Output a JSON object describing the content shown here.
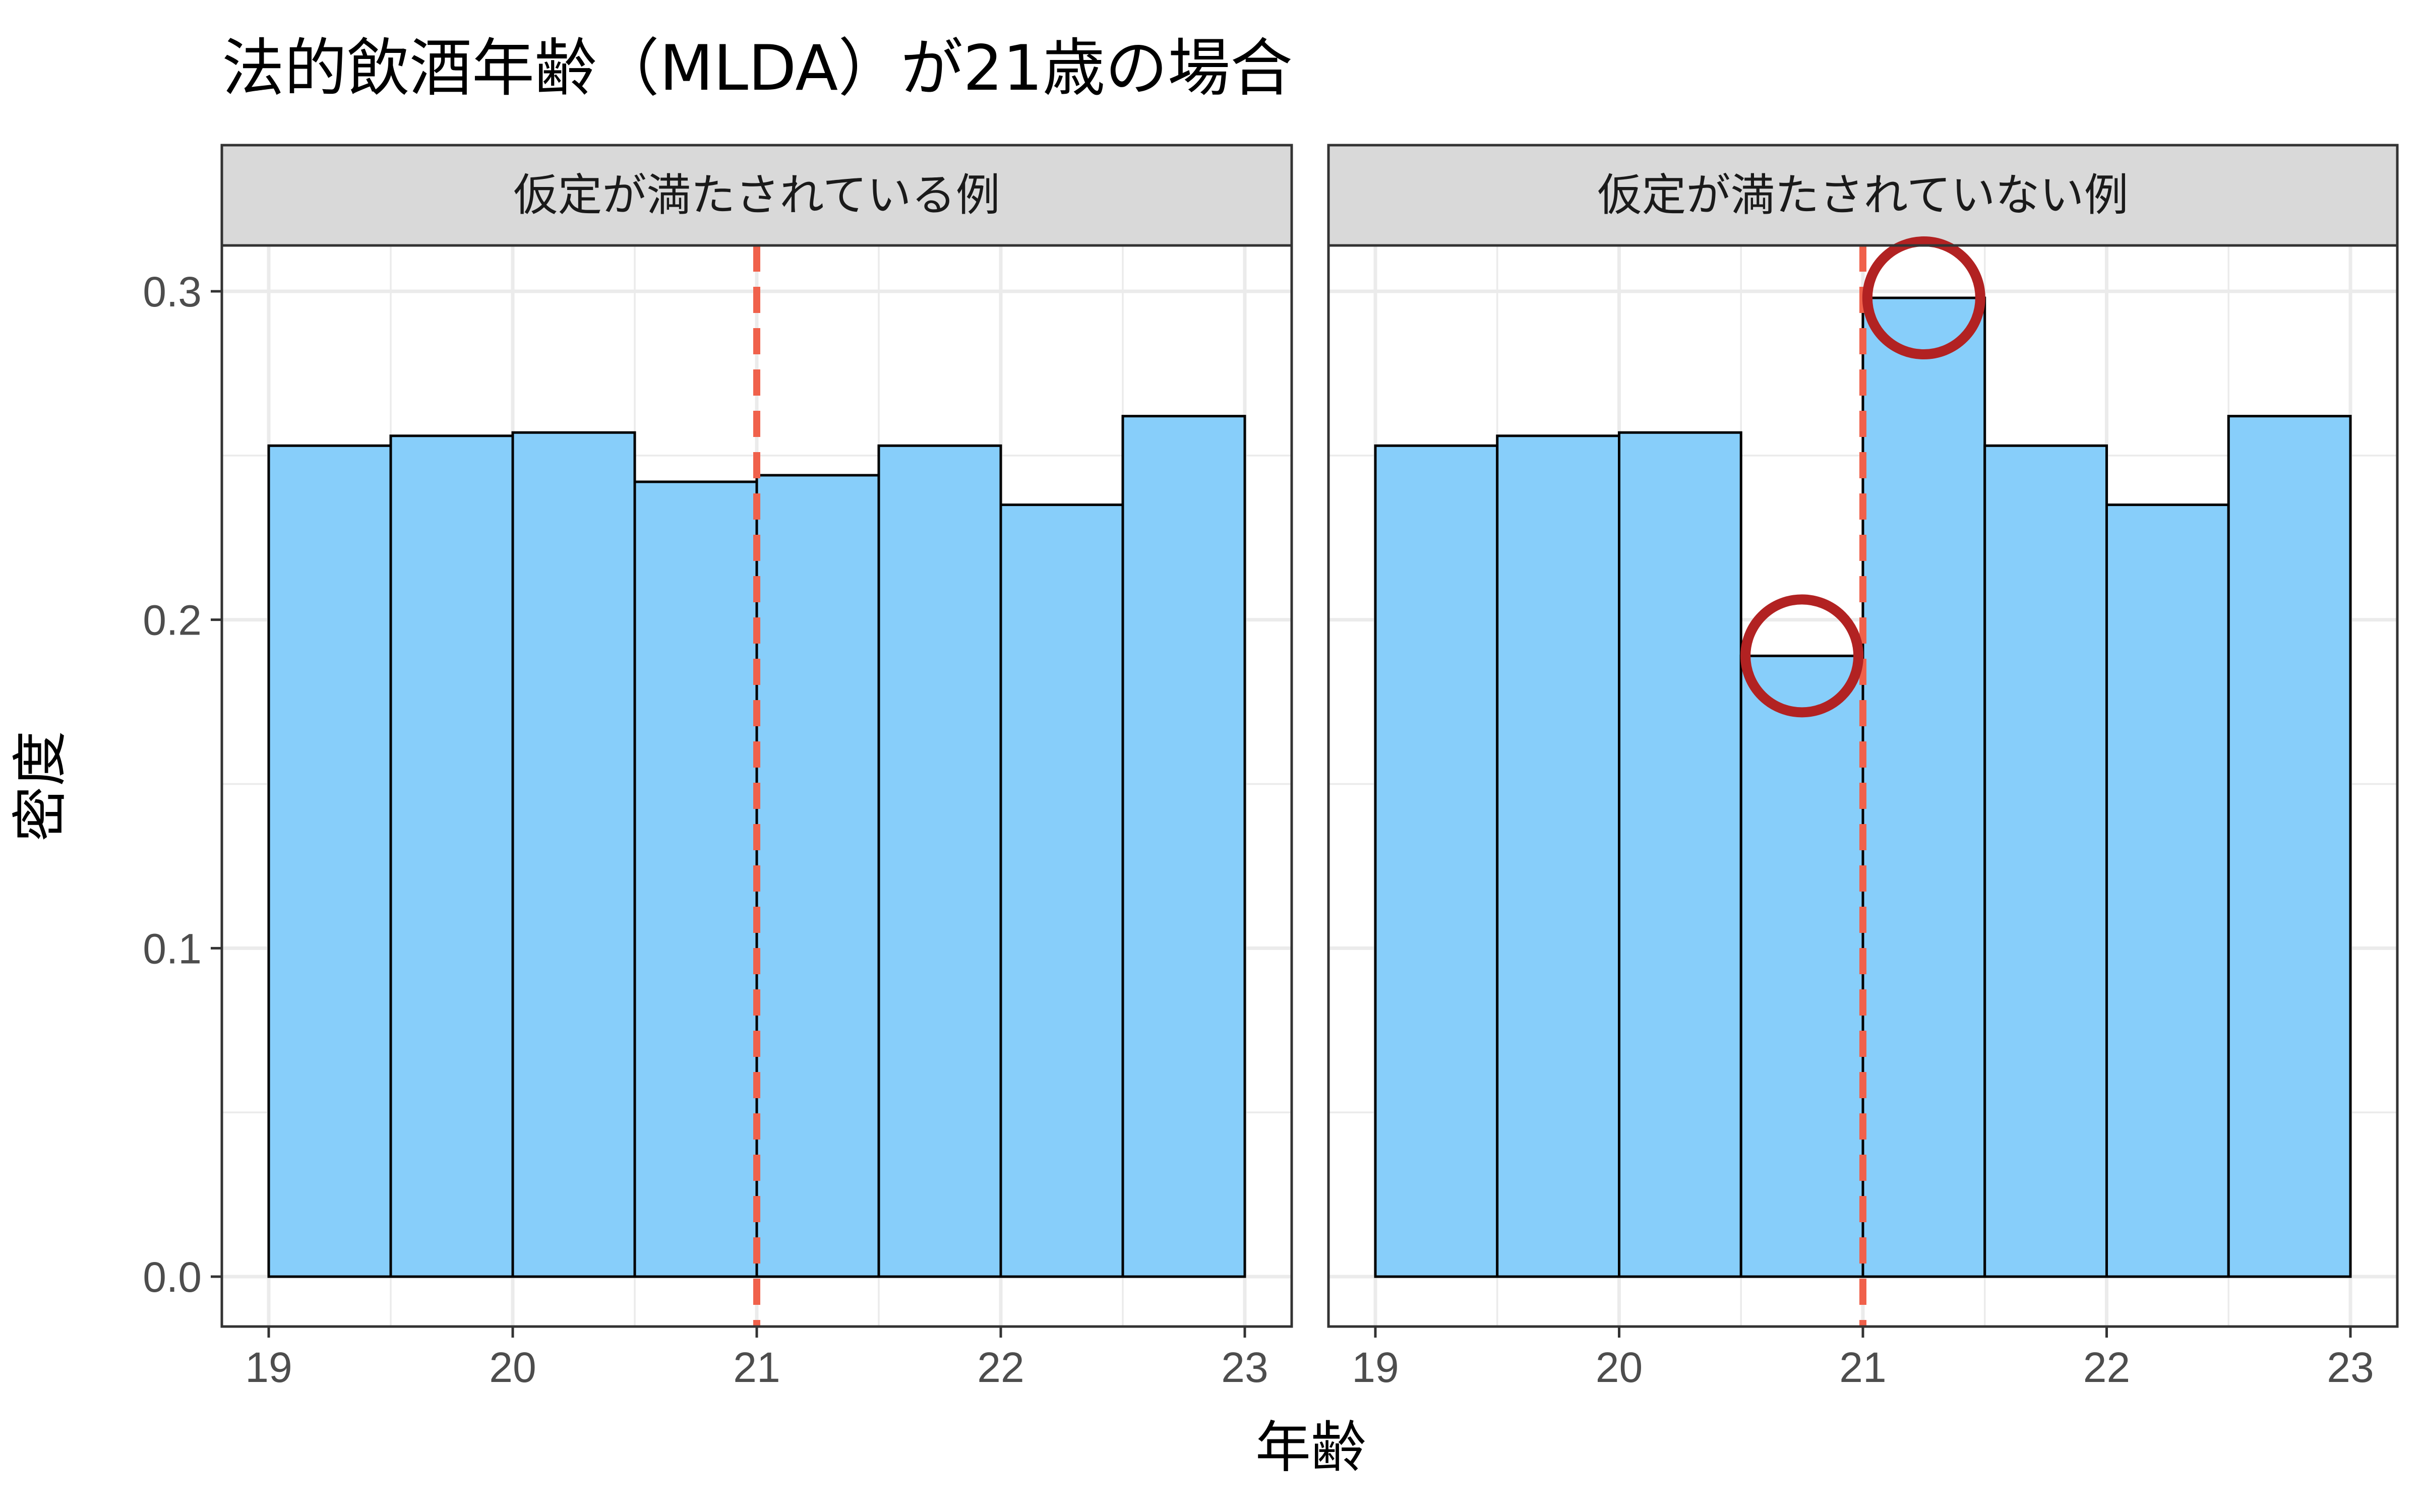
{
  "chart_data": {
    "type": "bar",
    "title": "法的飲酒年齢（MLDA）が21歳の場合",
    "xlabel": "年齢",
    "ylabel": "密度",
    "xlim": [
      19,
      23
    ],
    "ylim": [
      0,
      0.3
    ],
    "x_ticks": [
      "19",
      "20",
      "21",
      "22",
      "23"
    ],
    "y_ticks": [
      "0.0",
      "0.1",
      "0.2",
      "0.3"
    ],
    "bin_width": 0.5,
    "cutoff": 21,
    "grid": true,
    "colors": {
      "bar_fill": "#87CEFA",
      "bar_stroke": "#000000",
      "cutoff_line": "#F0614B",
      "highlight_circle": "#B22222",
      "strip_bg": "#D9D9D9"
    },
    "panels": [
      {
        "label": "仮定が満たされている例",
        "bins": [
          19,
          19.5,
          20,
          20.5,
          21,
          21.5,
          22,
          22.5
        ],
        "values": [
          0.253,
          0.256,
          0.257,
          0.242,
          0.244,
          0.253,
          0.235,
          0.262
        ],
        "highlights": []
      },
      {
        "label": "仮定が満たされていない例",
        "bins": [
          19,
          19.5,
          20,
          20.5,
          21,
          21.5,
          22,
          22.5
        ],
        "values": [
          0.253,
          0.256,
          0.257,
          0.189,
          0.298,
          0.253,
          0.235,
          0.262
        ],
        "highlights": [
          3,
          4
        ]
      }
    ]
  }
}
